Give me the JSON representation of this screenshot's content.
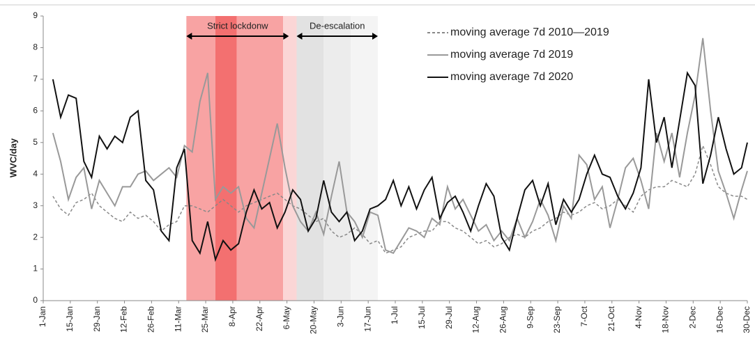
{
  "chart_data": {
    "type": "line",
    "y_label": "WVC/day",
    "xlim": [
      0,
      364
    ],
    "ylim": [
      0,
      9
    ],
    "yticks": [
      0,
      1,
      2,
      3,
      4,
      5,
      6,
      7,
      8,
      9
    ],
    "xticks": [
      {
        "value": 0,
        "label": "1-Jan"
      },
      {
        "value": 14,
        "label": "15-Jan"
      },
      {
        "value": 28,
        "label": "29-Jan"
      },
      {
        "value": 42,
        "label": "12-Feb"
      },
      {
        "value": 56,
        "label": "26-Feb"
      },
      {
        "value": 70,
        "label": "11-Mar"
      },
      {
        "value": 84,
        "label": "25-Mar"
      },
      {
        "value": 98,
        "label": "8-Apr"
      },
      {
        "value": 112,
        "label": "22-Apr"
      },
      {
        "value": 126,
        "label": "6-May"
      },
      {
        "value": 140,
        "label": "20-May"
      },
      {
        "value": 154,
        "label": "3-Jun"
      },
      {
        "value": 168,
        "label": "17-Jun"
      },
      {
        "value": 182,
        "label": "1-Jul"
      },
      {
        "value": 196,
        "label": "15-Jul"
      },
      {
        "value": 210,
        "label": "29-Jul"
      },
      {
        "value": 224,
        "label": "12-Aug"
      },
      {
        "value": 238,
        "label": "26-Aug"
      },
      {
        "value": 252,
        "label": "9-Sep"
      },
      {
        "value": 266,
        "label": "23-Sep"
      },
      {
        "value": 280,
        "label": "7-Oct"
      },
      {
        "value": 294,
        "label": "21-Oct"
      },
      {
        "value": 308,
        "label": "4-Nov"
      },
      {
        "value": 322,
        "label": "18-Nov"
      },
      {
        "value": 336,
        "label": "2-Dec"
      },
      {
        "value": 350,
        "label": "16-Dec"
      },
      {
        "value": 364,
        "label": "30-Dec"
      }
    ],
    "shaded_spans": [
      {
        "start": 74,
        "end": 89,
        "color": "#f8a3a3"
      },
      {
        "start": 89,
        "end": 100,
        "color": "#f37070"
      },
      {
        "start": 100,
        "end": 124,
        "color": "#f8a3a3"
      },
      {
        "start": 124,
        "end": 131,
        "color": "#fbd6d6"
      },
      {
        "start": 131,
        "end": 145,
        "color": "#e2e2e2"
      },
      {
        "start": 145,
        "end": 159,
        "color": "#ececec"
      },
      {
        "start": 159,
        "end": 173,
        "color": "#f4f4f4"
      }
    ],
    "annotations": [
      {
        "text": "Strict lockdonw",
        "start": 74,
        "end": 127
      },
      {
        "text": "De-escalation",
        "start": 131,
        "end": 173
      }
    ],
    "x": [
      5,
      9,
      13,
      17,
      21,
      25,
      29,
      33,
      37,
      41,
      45,
      49,
      53,
      57,
      61,
      65,
      69,
      73,
      77,
      81,
      85,
      89,
      93,
      97,
      101,
      105,
      109,
      113,
      117,
      121,
      125,
      129,
      133,
      137,
      141,
      145,
      149,
      153,
      157,
      161,
      165,
      169,
      173,
      177,
      181,
      185,
      189,
      193,
      197,
      201,
      205,
      209,
      213,
      217,
      221,
      225,
      229,
      233,
      237,
      241,
      245,
      249,
      253,
      257,
      261,
      265,
      269,
      273,
      277,
      281,
      285,
      289,
      293,
      297,
      301,
      305,
      309,
      313,
      317,
      321,
      325,
      329,
      333,
      337,
      341,
      345,
      349,
      353,
      357,
      361,
      364
    ],
    "series": [
      {
        "name": "moving average 7d 2010—2019",
        "color": "#888888",
        "dashed": true,
        "values": [
          3.3,
          2.9,
          2.7,
          3.1,
          3.2,
          3.4,
          3.0,
          2.8,
          2.6,
          2.5,
          2.8,
          2.6,
          2.7,
          2.5,
          2.2,
          2.4,
          2.5,
          3.0,
          3.0,
          2.9,
          2.8,
          3.0,
          3.2,
          3.0,
          2.8,
          3.0,
          3.1,
          3.2,
          3.3,
          3.4,
          3.2,
          3.0,
          2.9,
          2.7,
          2.5,
          2.6,
          2.2,
          2.0,
          2.1,
          2.3,
          2.1,
          1.8,
          1.9,
          1.5,
          1.6,
          1.7,
          2.0,
          2.1,
          2.2,
          2.2,
          2.5,
          2.5,
          2.3,
          2.2,
          2.0,
          1.8,
          1.9,
          1.7,
          1.8,
          2.0,
          2.1,
          2.0,
          2.2,
          2.3,
          2.5,
          2.6,
          2.8,
          2.7,
          2.8,
          3.0,
          3.1,
          2.9,
          3.0,
          3.2,
          3.0,
          2.8,
          3.3,
          3.5,
          3.6,
          3.6,
          3.8,
          3.7,
          3.6,
          4.0,
          4.9,
          4.3,
          3.6,
          3.4,
          3.3,
          3.3,
          3.2
        ]
      },
      {
        "name": "moving average 7d 2019",
        "color": "#999999",
        "dashed": false,
        "values": [
          5.3,
          4.4,
          3.2,
          3.9,
          4.2,
          2.9,
          3.8,
          3.4,
          3.0,
          3.6,
          3.6,
          4.0,
          4.1,
          3.8,
          4.0,
          4.2,
          3.9,
          4.9,
          4.7,
          6.3,
          7.2,
          3.2,
          3.6,
          3.4,
          3.6,
          2.6,
          2.3,
          3.4,
          4.5,
          5.6,
          4.2,
          3.0,
          2.5,
          2.2,
          2.8,
          2.1,
          3.3,
          4.4,
          2.8,
          2.5,
          2.0,
          2.8,
          2.7,
          1.6,
          1.5,
          1.9,
          2.3,
          2.2,
          2.0,
          2.6,
          2.4,
          3.6,
          2.9,
          3.2,
          2.7,
          2.2,
          2.4,
          1.9,
          2.2,
          1.9,
          2.6,
          2.0,
          2.5,
          3.2,
          2.7,
          1.9,
          3.0,
          2.6,
          4.6,
          4.3,
          3.2,
          3.6,
          2.3,
          3.2,
          4.2,
          4.5,
          3.8,
          2.9,
          5.3,
          4.4,
          5.3,
          3.9,
          5.3,
          6.5,
          8.3,
          6.0,
          4.1,
          3.4,
          2.6,
          3.5,
          4.1
        ]
      },
      {
        "name": "moving average 7d 2020",
        "color": "#111111",
        "dashed": false,
        "values": [
          7.0,
          5.8,
          6.5,
          6.4,
          4.4,
          3.9,
          5.2,
          4.8,
          5.2,
          5.0,
          5.8,
          6.0,
          3.8,
          3.5,
          2.2,
          1.9,
          4.2,
          4.8,
          1.9,
          1.5,
          2.5,
          1.3,
          1.9,
          1.6,
          1.8,
          2.8,
          3.5,
          2.9,
          3.1,
          2.3,
          2.8,
          3.5,
          3.2,
          2.2,
          2.6,
          3.8,
          2.8,
          2.5,
          2.8,
          1.9,
          2.2,
          2.9,
          3.0,
          3.2,
          3.8,
          3.0,
          3.6,
          2.9,
          3.5,
          3.9,
          2.6,
          3.1,
          3.3,
          2.8,
          2.2,
          3.0,
          3.7,
          3.3,
          2.0,
          1.6,
          2.6,
          3.5,
          3.8,
          3.0,
          3.7,
          2.4,
          3.2,
          2.8,
          3.2,
          4.0,
          4.6,
          4.0,
          3.9,
          3.3,
          2.9,
          3.4,
          4.2,
          7.0,
          5.0,
          5.8,
          4.2,
          5.7,
          7.2,
          6.8,
          3.7,
          4.6,
          5.8,
          4.8,
          4.0,
          4.2,
          5.0
        ]
      }
    ]
  }
}
